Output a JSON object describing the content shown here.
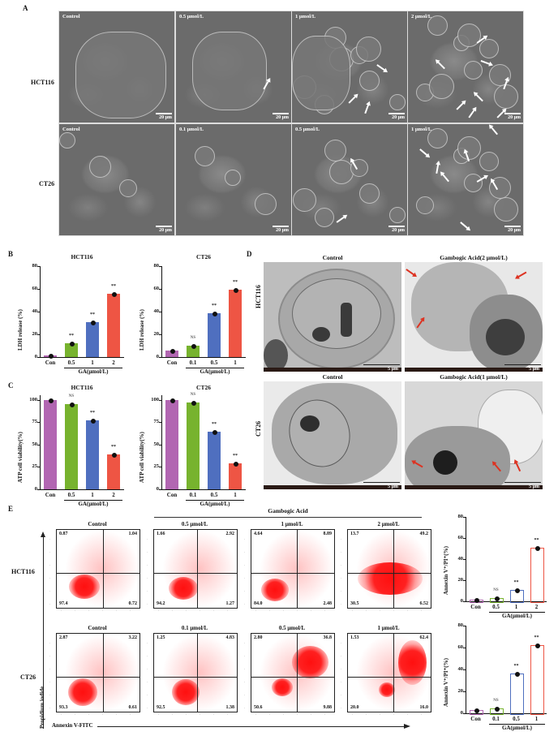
{
  "figure": {
    "panels": {
      "A": {
        "label": "A",
        "rows": [
          {
            "cell_line": "HCT116",
            "images": [
              {
                "label": "Control",
                "scale": "20 μm"
              },
              {
                "label": "0.5 μmol/L",
                "scale": "20 μm"
              },
              {
                "label": "1 μmol/L",
                "scale": "20 μm"
              },
              {
                "label": "2 μmol/L",
                "scale": "20 μm"
              }
            ]
          },
          {
            "cell_line": "CT26",
            "images": [
              {
                "label": "Control",
                "scale": "20 μm"
              },
              {
                "label": "0.1 μmol/L",
                "scale": "20 μm"
              },
              {
                "label": "0.5 μmol/L",
                "scale": "20 μm"
              },
              {
                "label": "1 μmol/L",
                "scale": "20 μm"
              }
            ]
          }
        ]
      },
      "B": {
        "label": "B"
      },
      "C": {
        "label": "C"
      },
      "D": {
        "label": "D",
        "rows": [
          {
            "cell_line": "HCT116",
            "images": [
              {
                "label": "Control",
                "scale": "5 μm"
              },
              {
                "label": "Gambogic Acid(2 μmol/L)",
                "scale": "5 μm"
              }
            ]
          },
          {
            "cell_line": "CT26",
            "images": [
              {
                "label": "Control",
                "scale": "5 μm"
              },
              {
                "label": "Gambogic Acid(1 μmol/L)",
                "scale": "5 μm"
              }
            ]
          }
        ]
      },
      "E": {
        "label": "E",
        "group_label": "Gambogic Acid",
        "y_axis_label": "Propidium iodide",
        "x_axis_label": "Annexin V-FITC",
        "log_ticks": [
          "10⁻¹",
          "0",
          "10²",
          "10³",
          "10⁴",
          "10⁵",
          "10⁶"
        ],
        "rows": [
          {
            "cell_line": "HCT116",
            "plots": [
              {
                "label": "Control",
                "q": {
                  "ul": "0.87",
                  "ur": "1.04",
                  "ll": "97.4",
                  "lr": "0.72"
                }
              },
              {
                "label": "0.5 μmol/L",
                "q": {
                  "ul": "1.66",
                  "ur": "2.92",
                  "ll": "94.2",
                  "lr": "1.27"
                }
              },
              {
                "label": "1 μmol/L",
                "q": {
                  "ul": "4.64",
                  "ur": "8.89",
                  "ll": "84.0",
                  "lr": "2.48"
                }
              },
              {
                "label": "2 μmol/L",
                "q": {
                  "ul": "13.7",
                  "ur": "49.2",
                  "ll": "30.5",
                  "lr": "6.52"
                }
              }
            ]
          },
          {
            "cell_line": "CT26",
            "plots": [
              {
                "label": "Control",
                "q": {
                  "ul": "2.87",
                  "ur": "3.22",
                  "ll": "93.3",
                  "lr": "0.61"
                }
              },
              {
                "label": "0.1 μmol/L",
                "q": {
                  "ul": "1.25",
                  "ur": "4.83",
                  "ll": "92.5",
                  "lr": "1.38"
                }
              },
              {
                "label": "0.5 μmol/L",
                "q": {
                  "ul": "2.80",
                  "ur": "36.8",
                  "ll": "50.6",
                  "lr": "9.88"
                }
              },
              {
                "label": "1 μmol/L",
                "q": {
                  "ul": "1.53",
                  "ur": "62.4",
                  "ll": "20.0",
                  "lr": "16.0"
                }
              }
            ]
          }
        ]
      }
    },
    "colors": {
      "con": "#b266b2",
      "low": "#77b32e",
      "mid": "#4f6fbf",
      "high": "#ee5544"
    }
  },
  "chart_data": [
    {
      "id": "B-HCT116",
      "type": "bar",
      "title": "HCT116",
      "categories": [
        "Con",
        "0.5",
        "1",
        "2"
      ],
      "values": [
        1.5,
        12.5,
        30.5,
        56
      ],
      "significance": [
        "",
        "**",
        "**",
        "**"
      ],
      "xlabel": "GA(μmol/L)",
      "ylabel": "LDH release (%)",
      "ylim": [
        0,
        80
      ],
      "yticks": [
        "0",
        "20",
        "40",
        "60",
        "80"
      ]
    },
    {
      "id": "B-CT26",
      "type": "bar",
      "title": "CT26",
      "categories": [
        "Con",
        "0.1",
        "0.5",
        "1"
      ],
      "values": [
        6,
        10,
        38.5,
        59
      ],
      "significance": [
        "",
        "NS",
        "**",
        "**"
      ],
      "xlabel": "GA(μmol/L)",
      "ylabel": "LDH release (%)",
      "ylim": [
        0,
        80
      ],
      "yticks": [
        "0",
        "20",
        "40",
        "60",
        "80"
      ]
    },
    {
      "id": "C-HCT116",
      "type": "bar",
      "title": "HCT116",
      "categories": [
        "Con",
        "0.5",
        "1",
        "2"
      ],
      "values": [
        100,
        95,
        77,
        39
      ],
      "significance": [
        "",
        "NS",
        "**",
        "**"
      ],
      "xlabel": "GA(μmol/L)",
      "ylabel": "ATP cell viability(%)",
      "ylim": [
        0,
        105
      ],
      "yticks": [
        "0",
        "25",
        "50",
        "75",
        "100"
      ]
    },
    {
      "id": "C-CT26",
      "type": "bar",
      "title": "CT26",
      "categories": [
        "Con",
        "0.1",
        "0.5",
        "1"
      ],
      "values": [
        100,
        97,
        64,
        29
      ],
      "significance": [
        "",
        "NS",
        "**",
        "**"
      ],
      "xlabel": "GA(μmol/L)",
      "ylabel": "ATP cell viability(%)",
      "ylim": [
        0,
        105
      ],
      "yticks": [
        "0",
        "25",
        "50",
        "75",
        "100"
      ]
    },
    {
      "id": "E-HCT116",
      "type": "bar",
      "title": "",
      "categories": [
        "Con",
        "0.5",
        "1",
        "2"
      ],
      "values": [
        1.5,
        3,
        10.5,
        51
      ],
      "significance": [
        "",
        "NS",
        "**",
        "**"
      ],
      "xlabel": "GA(μmol/L)",
      "ylabel": "Annexin V⁺/PI⁺(%)",
      "ylim": [
        0,
        80
      ],
      "yticks": [
        "0",
        "20",
        "40",
        "60",
        "80"
      ],
      "style": "hollow"
    },
    {
      "id": "E-CT26",
      "type": "bar",
      "title": "",
      "categories": [
        "Con",
        "0.1",
        "0.5",
        "1"
      ],
      "values": [
        2.8,
        4.8,
        36,
        62.5
      ],
      "significance": [
        "",
        "NS",
        "**",
        "**"
      ],
      "xlabel": "GA(μmol/L)",
      "ylabel": "Annexin V⁺/PI⁺(%)",
      "ylim": [
        0,
        80
      ],
      "yticks": [
        "0",
        "20",
        "40",
        "60",
        "80"
      ],
      "style": "hollow"
    }
  ]
}
